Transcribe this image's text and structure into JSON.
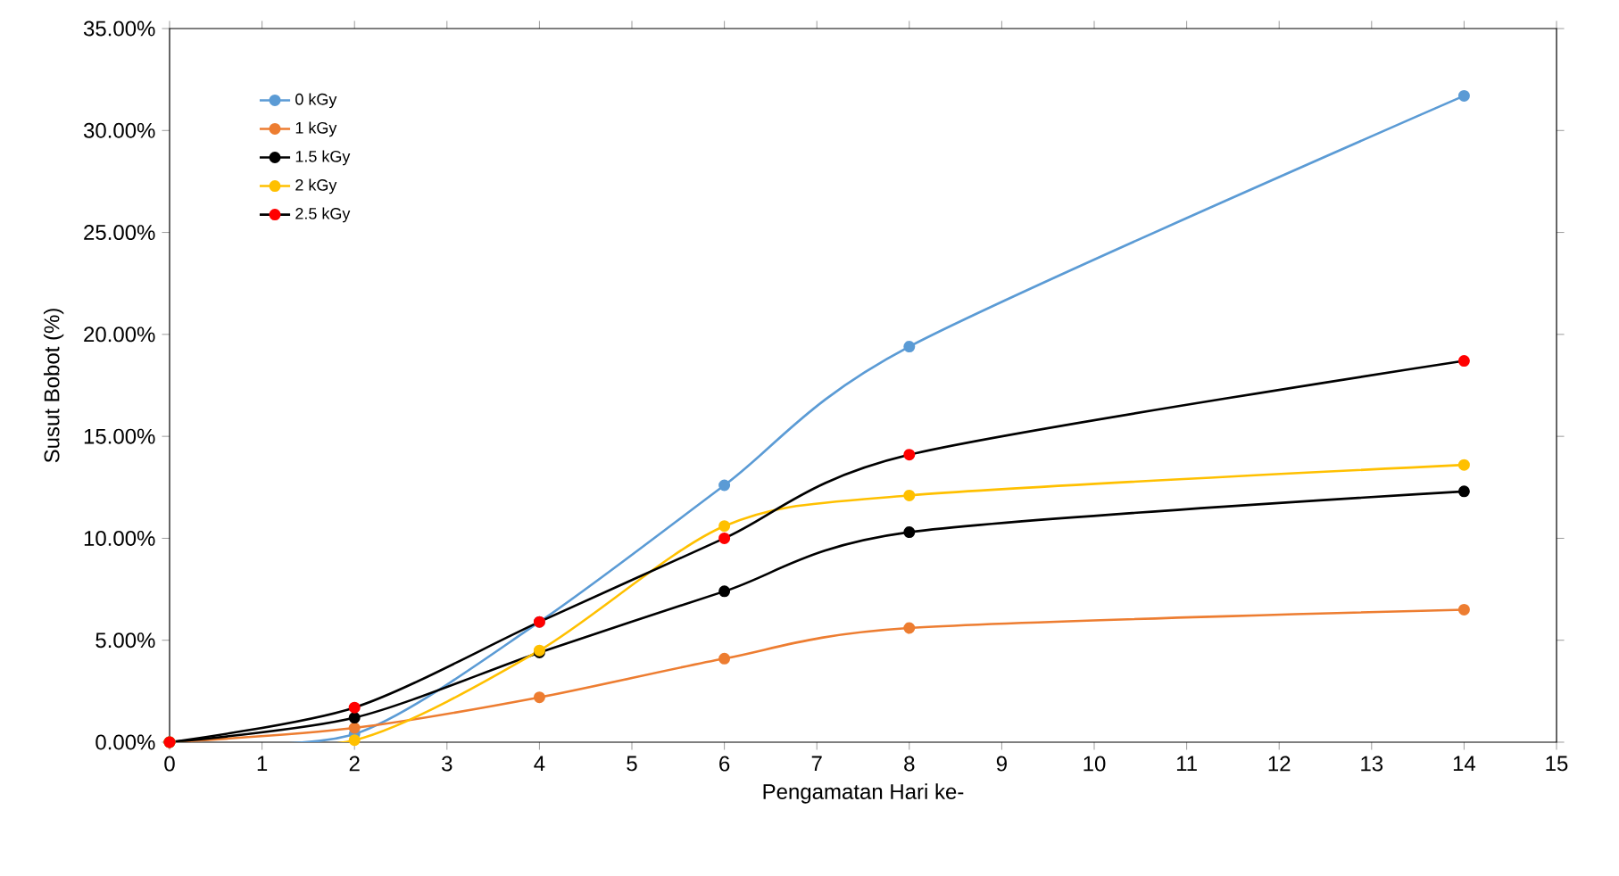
{
  "chart_data": {
    "type": "line",
    "xlabel": "Pengamatan Hari ke-",
    "ylabel": "Susut Bobot (%)",
    "x": [
      0,
      2,
      4,
      6,
      8,
      14
    ],
    "series": [
      {
        "name": "0 kGy",
        "color": "#5b9bd5",
        "values": [
          0,
          0.4,
          5.9,
          12.6,
          19.4,
          31.7
        ]
      },
      {
        "name": "1 kGy",
        "color": "#ed7d31",
        "values": [
          0,
          0.7,
          2.2,
          4.1,
          5.6,
          6.5
        ]
      },
      {
        "name": "1.5 kGy",
        "color": "#000000",
        "values": [
          0,
          1.2,
          4.4,
          7.4,
          10.3,
          12.3
        ]
      },
      {
        "name": "2 kGy",
        "color": "#ffc000",
        "values": [
          0,
          0.1,
          4.5,
          10.6,
          12.1,
          13.6
        ]
      },
      {
        "name": "2.5 kGy",
        "color": "#000000",
        "colors": [
          "#ff0000",
          "#ff0000",
          "#ff0000",
          "#ff0000",
          "#ff0000",
          "#ff0000"
        ],
        "values": [
          0,
          1.7,
          5.9,
          10.0,
          14.1,
          18.7
        ]
      }
    ],
    "xlim": [
      0,
      15
    ],
    "xticks": [
      0,
      1,
      2,
      3,
      4,
      5,
      6,
      7,
      8,
      9,
      10,
      11,
      12,
      13,
      14,
      15
    ],
    "ylim": [
      0,
      35
    ],
    "yticks": [
      {
        "value": 0,
        "label": "0.00%"
      },
      {
        "value": 5,
        "label": "5.00%"
      },
      {
        "value": 10,
        "label": "10.00%"
      },
      {
        "value": 15,
        "label": "15.00%"
      },
      {
        "value": 20,
        "label": "20.00%"
      },
      {
        "value": 25,
        "label": "25.00%"
      },
      {
        "value": 30,
        "label": "30.00%"
      },
      {
        "value": 35,
        "label": "35.00%"
      }
    ],
    "legend": "top left",
    "marker": "circle",
    "line_style": "solid",
    "grid": false
  }
}
